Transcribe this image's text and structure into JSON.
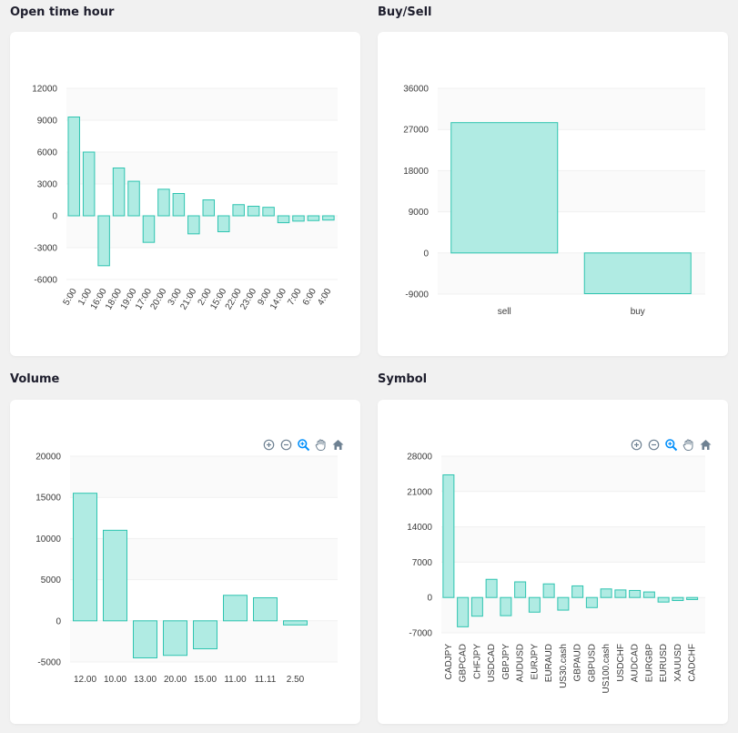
{
  "cards": {
    "open_time_hour": {
      "title": "Open time hour"
    },
    "buy_sell": {
      "title": "Buy/Sell"
    },
    "volume": {
      "title": "Volume"
    },
    "symbol": {
      "title": "Symbol"
    }
  },
  "toolbar_icons": [
    "zoom-in-icon",
    "zoom-out-icon",
    "zoom-select-icon",
    "pan-hand-icon",
    "reset-home-icon"
  ],
  "colors": {
    "bar_fill": "#b0ebe3",
    "bar_stroke": "#2ec4b0",
    "axis_text": "#3b3b3b",
    "grid": "#f0f0f0"
  },
  "chart_data": [
    {
      "id": "open_time_hour",
      "type": "bar",
      "categories": [
        "5:00",
        "1:00",
        "16:00",
        "18:00",
        "19:00",
        "17:00",
        "20:00",
        "3:00",
        "21:00",
        "2:00",
        "15:00",
        "22:00",
        "23:00",
        "9:00",
        "14:00",
        "7:00",
        "6:00",
        "4:00"
      ],
      "values": [
        9300,
        6000,
        -4700,
        4500,
        3250,
        -2500,
        2500,
        2100,
        -1700,
        1500,
        -1500,
        1050,
        900,
        800,
        -650,
        -500,
        -450,
        -400
      ],
      "yticks": [
        12000,
        9000,
        6000,
        3000,
        0,
        -3000,
        -6000
      ],
      "ylim": [
        -6000,
        12000
      ],
      "xlabel_rotation": -60
    },
    {
      "id": "buy_sell",
      "type": "bar",
      "categories": [
        "sell",
        "buy"
      ],
      "values": [
        28500,
        -8900
      ],
      "yticks": [
        36000,
        27000,
        18000,
        9000,
        0,
        -9000
      ],
      "ylim": [
        -9000,
        36000
      ],
      "xlabel_rotation": 0
    },
    {
      "id": "volume",
      "type": "bar",
      "categories": [
        "12.00",
        "10.00",
        "13.00",
        "20.00",
        "15.00",
        "11.00",
        "11.11",
        "2.50"
      ],
      "values": [
        15500,
        11000,
        -4500,
        -4200,
        -3400,
        3100,
        2800,
        -500
      ],
      "yticks": [
        20000,
        15000,
        10000,
        5000,
        0,
        -5000
      ],
      "ylim": [
        -5000,
        20000
      ],
      "xlabel_rotation": 0
    },
    {
      "id": "symbol",
      "type": "bar",
      "categories": [
        "CADJPY",
        "GBPCAD",
        "CHFJPY",
        "USDCAD",
        "GBPJPY",
        "AUDUSD",
        "EURJPY",
        "EURAUD",
        "US30.cash",
        "GBPAUD",
        "GBPUSD",
        "US100.cash",
        "USDCHF",
        "AUDCAD",
        "EURGBP",
        "EURUSD",
        "XAUUSD",
        "CADCHF"
      ],
      "values": [
        24300,
        -5800,
        -3700,
        3600,
        -3600,
        3100,
        -2900,
        2700,
        -2500,
        2300,
        -2000,
        1700,
        1500,
        1400,
        1100,
        -900,
        -600,
        -400
      ],
      "yticks": [
        28000,
        21000,
        14000,
        7000,
        0,
        -7000
      ],
      "ylim": [
        -7000,
        28000
      ],
      "xlabel_rotation": -90
    }
  ]
}
